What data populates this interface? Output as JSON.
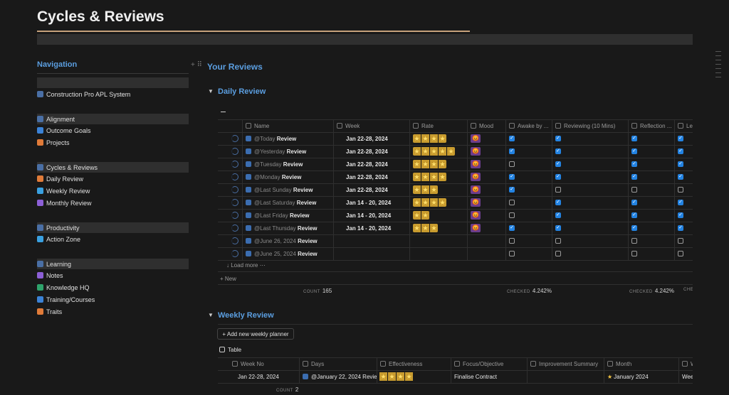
{
  "header": {
    "title": "Cycles & Reviews"
  },
  "navigation": {
    "title": "Navigation",
    "top_item": "Construction Pro APL System",
    "groups": [
      {
        "heading": "Alignment",
        "items": [
          "Outcome Goals",
          "Projects"
        ]
      },
      {
        "heading": "Cycles & Reviews",
        "items": [
          "Daily Review",
          "Weekly Review",
          "Monthly Review"
        ]
      },
      {
        "heading": "Productivity",
        "items": [
          "Action Zone"
        ]
      },
      {
        "heading": "Learning",
        "items": [
          "Notes",
          "Knowledge HQ",
          "Training/Courses",
          "Traits"
        ]
      }
    ]
  },
  "main": {
    "title": "Your Reviews",
    "daily_review": {
      "title": "Daily Review",
      "columns": [
        "Name",
        "Week",
        "Rate",
        "Mood",
        "Awake by ...",
        "Reviewing (10 Mins)",
        "Reflection ...",
        "Le"
      ],
      "rows": [
        {
          "mention": "@Today",
          "suffix": "Review",
          "week": "Jan 22-28, 2024",
          "rate": 4,
          "mood": "😡",
          "checks": [
            true,
            true,
            true,
            true
          ]
        },
        {
          "mention": "@Yesterday",
          "suffix": "Review",
          "week": "Jan 22-28, 2024",
          "rate": 5,
          "mood": "😡",
          "checks": [
            true,
            true,
            true,
            true
          ]
        },
        {
          "mention": "@Tuesday",
          "suffix": "Review",
          "week": "Jan 22-28, 2024",
          "rate": 4,
          "mood": "😡",
          "checks": [
            false,
            true,
            true,
            true
          ]
        },
        {
          "mention": "@Monday",
          "suffix": "Review",
          "week": "Jan 22-28, 2024",
          "rate": 4,
          "mood": "😡",
          "checks": [
            true,
            true,
            true,
            true
          ]
        },
        {
          "mention": "@Last Sunday",
          "suffix": "Review",
          "week": "Jan 22-28, 2024",
          "rate": 3,
          "mood": "😡",
          "checks": [
            true,
            false,
            false,
            false
          ]
        },
        {
          "mention": "@Last Saturday",
          "suffix": "Review",
          "week": "Jan 14 - 20, 2024",
          "rate": 4,
          "mood": "😡",
          "checks": [
            false,
            true,
            true,
            true
          ]
        },
        {
          "mention": "@Last Friday",
          "suffix": "Review",
          "week": "Jan 14 - 20, 2024",
          "rate": 2,
          "mood": "😡",
          "checks": [
            false,
            true,
            true,
            true
          ]
        },
        {
          "mention": "@Last Thursday",
          "suffix": "Review",
          "week": "Jan 14 - 20, 2024",
          "rate": 3,
          "mood": "😡",
          "checks": [
            true,
            true,
            true,
            true
          ]
        },
        {
          "mention": "@June 26, 2024",
          "suffix": "Review",
          "week": null,
          "rate": null,
          "mood": null,
          "checks": [
            false,
            false,
            false,
            false
          ]
        },
        {
          "mention": "@June 25, 2024",
          "suffix": "Review",
          "week": null,
          "rate": null,
          "mood": null,
          "checks": [
            false,
            false,
            false,
            false
          ]
        }
      ],
      "load_more": "Load more",
      "new": "New",
      "count_label": "COUNT",
      "count": 165,
      "checked_label": "CHECKED",
      "checked": [
        "4.242%",
        "4.242%"
      ]
    },
    "weekly_review": {
      "title": "Weekly Review",
      "button": "Add new weekly planner",
      "view": "Table",
      "columns": [
        "Week No",
        "Days",
        "Effectiveness",
        "Focus/Objective",
        "Improvement Summary",
        "Month",
        "W"
      ],
      "rows": [
        {
          "week_no": "Jan 22-28, 2024",
          "days": "@January 22, 2024 Revie",
          "effectiveness": 4,
          "focus": "Finalise Contract",
          "month": "January 2024",
          "last": "Wee"
        }
      ],
      "count_label": "COUNT",
      "count": 2
    }
  }
}
